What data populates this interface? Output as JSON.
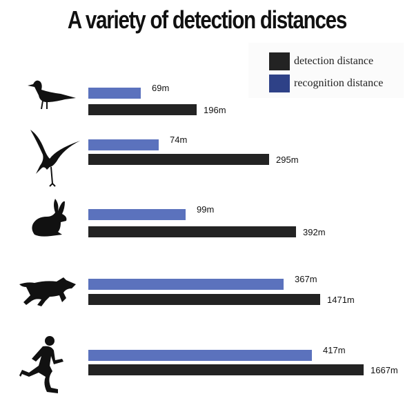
{
  "chart_data": {
    "type": "bar",
    "orientation": "horizontal",
    "title": "A variety of detection distances",
    "categories": [
      "seagull-icon",
      "heron-icon",
      "rabbit-icon",
      "wolf-icon",
      "runner-icon"
    ],
    "series": [
      {
        "name": "recognition distance",
        "color": "#5b72bd",
        "values": [
          69,
          74,
          99,
          367,
          417
        ],
        "labels": [
          "69m",
          "74m",
          "99m",
          "367m",
          "417m"
        ]
      },
      {
        "name": "detection distance",
        "color": "#232323",
        "values": [
          196,
          295,
          392,
          1471,
          1667
        ],
        "labels": [
          "196m",
          "295m",
          "392m",
          "1471m",
          "1667m"
        ]
      }
    ],
    "legend": {
      "position": "top-right",
      "entries": [
        {
          "label": "detection distance",
          "color": "#232323"
        },
        {
          "label": "recognition distance",
          "color": "#2e4187"
        }
      ]
    },
    "grid": false,
    "axes_visible": false
  }
}
